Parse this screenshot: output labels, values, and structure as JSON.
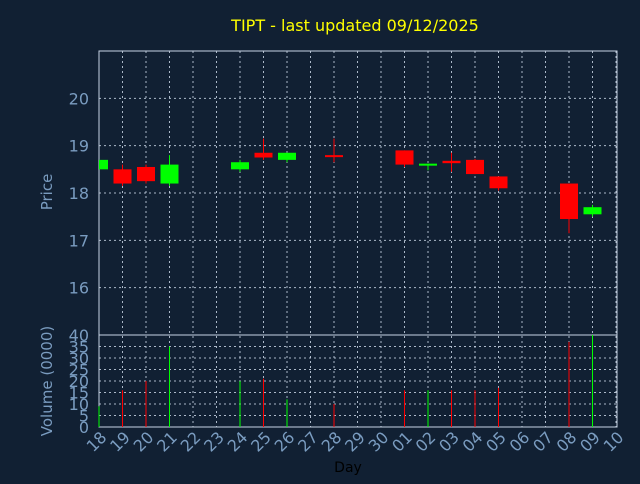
{
  "title": "TIPT - last updated 09/12/2025",
  "colors": {
    "background": "#112033",
    "title": "#ffff00",
    "axis_text": "#7a9cc0",
    "frame": "#c8d4e4",
    "grid": "#c8d4e4",
    "up": "#00ff00",
    "down": "#ff0000",
    "xlabel_text": "#000000"
  },
  "chart_data": [
    {
      "type": "candlestick",
      "ylabel": "Price",
      "ylim": [
        15,
        21
      ],
      "yticks": [
        16,
        17,
        18,
        19,
        20
      ],
      "grid": true,
      "categories": [
        "18",
        "19",
        "20",
        "21",
        "22",
        "23",
        "24",
        "25",
        "26",
        "27",
        "28",
        "29",
        "30",
        "01",
        "02",
        "03",
        "04",
        "05",
        "06",
        "07",
        "08",
        "09",
        "10"
      ],
      "candles": [
        {
          "day": "18",
          "open": 18.5,
          "high": 18.7,
          "low": 18.5,
          "close": 18.7
        },
        {
          "day": "19",
          "open": 18.5,
          "high": 18.6,
          "low": 18.15,
          "close": 18.2
        },
        {
          "day": "20",
          "open": 18.55,
          "high": 18.6,
          "low": 18.2,
          "close": 18.25
        },
        {
          "day": "21",
          "open": 18.2,
          "high": 18.8,
          "low": 18.15,
          "close": 18.6
        },
        {
          "day": "24",
          "open": 18.5,
          "high": 18.7,
          "low": 18.45,
          "close": 18.65
        },
        {
          "day": "25",
          "open": 18.85,
          "high": 19.15,
          "low": 18.7,
          "close": 18.75
        },
        {
          "day": "26",
          "open": 18.7,
          "high": 18.85,
          "low": 18.65,
          "close": 18.85
        },
        {
          "day": "28",
          "open": 18.8,
          "high": 19.15,
          "low": 18.65,
          "close": 18.78
        },
        {
          "day": "01",
          "open": 18.9,
          "high": 18.9,
          "low": 18.55,
          "close": 18.6
        },
        {
          "day": "02",
          "open": 18.58,
          "high": 18.62,
          "low": 18.48,
          "close": 18.62
        },
        {
          "day": "03",
          "open": 18.68,
          "high": 18.85,
          "low": 18.45,
          "close": 18.63
        },
        {
          "day": "04",
          "open": 18.7,
          "high": 18.72,
          "low": 18.4,
          "close": 18.4
        },
        {
          "day": "05",
          "open": 18.35,
          "high": 18.35,
          "low": 18.05,
          "close": 18.1
        },
        {
          "day": "08",
          "open": 18.2,
          "high": 18.2,
          "low": 17.15,
          "close": 17.45
        },
        {
          "day": "09",
          "open": 17.55,
          "high": 17.75,
          "low": 17.5,
          "close": 17.7
        }
      ]
    },
    {
      "type": "bar",
      "ylabel": "Volume (0000)",
      "xlabel": "Day",
      "ylim": [
        0,
        40
      ],
      "yticks": [
        0,
        5,
        10,
        15,
        20,
        25,
        30,
        35,
        40
      ],
      "grid": true,
      "categories": [
        "18",
        "19",
        "20",
        "21",
        "22",
        "23",
        "24",
        "25",
        "26",
        "27",
        "28",
        "29",
        "30",
        "01",
        "02",
        "03",
        "04",
        "05",
        "06",
        "07",
        "08",
        "09",
        "10"
      ],
      "bars": [
        {
          "day": "18",
          "value": 9,
          "direction": "up"
        },
        {
          "day": "19",
          "value": 16,
          "direction": "down"
        },
        {
          "day": "20",
          "value": 20,
          "direction": "down"
        },
        {
          "day": "21",
          "value": 35,
          "direction": "up"
        },
        {
          "day": "24",
          "value": 20,
          "direction": "up"
        },
        {
          "day": "25",
          "value": 21,
          "direction": "down"
        },
        {
          "day": "26",
          "value": 12,
          "direction": "up"
        },
        {
          "day": "28",
          "value": 10,
          "direction": "down"
        },
        {
          "day": "01",
          "value": 16,
          "direction": "down"
        },
        {
          "day": "02",
          "value": 16,
          "direction": "up"
        },
        {
          "day": "03",
          "value": 16,
          "direction": "down"
        },
        {
          "day": "04",
          "value": 16,
          "direction": "down"
        },
        {
          "day": "05",
          "value": 17,
          "direction": "down"
        },
        {
          "day": "08",
          "value": 37,
          "direction": "down"
        },
        {
          "day": "09",
          "value": 40,
          "direction": "up"
        }
      ]
    }
  ]
}
